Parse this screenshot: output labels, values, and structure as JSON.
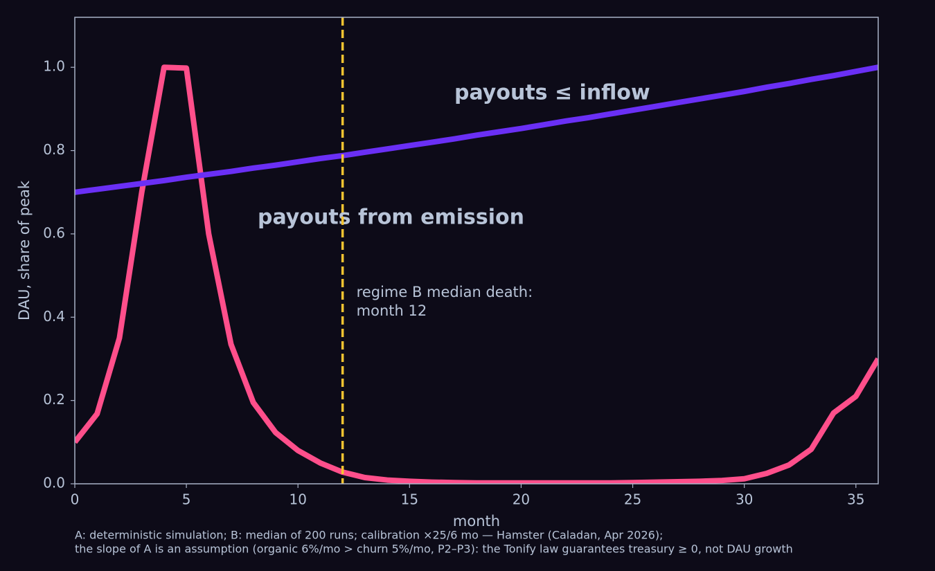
{
  "chart_data": {
    "type": "line",
    "xlabel": "month",
    "ylabel": "DAU, share of peak",
    "x": [
      0,
      1,
      2,
      3,
      4,
      5,
      6,
      7,
      8,
      9,
      10,
      11,
      12,
      13,
      14,
      15,
      16,
      17,
      18,
      19,
      20,
      21,
      22,
      23,
      24,
      25,
      26,
      27,
      28,
      29,
      30,
      31,
      32,
      33,
      34,
      35,
      36
    ],
    "series": [
      {
        "color": "#ff4f8b",
        "values": [
          0.1,
          0.168,
          0.35,
          0.7,
          1.0,
          0.998,
          0.6,
          0.335,
          0.195,
          0.123,
          0.08,
          0.05,
          0.028,
          0.015,
          0.009,
          0.006,
          0.004,
          0.003,
          0.002,
          0.002,
          0.002,
          0.002,
          0.002,
          0.002,
          0.002,
          0.003,
          0.004,
          0.005,
          0.006,
          0.008,
          0.012,
          0.025,
          0.045,
          0.083,
          0.17,
          0.21,
          0.3
        ]
      },
      {
        "color": "#6a2ff5",
        "values": [
          0.7,
          0.707,
          0.714,
          0.721,
          0.728,
          0.736,
          0.743,
          0.75,
          0.758,
          0.765,
          0.773,
          0.781,
          0.788,
          0.796,
          0.804,
          0.812,
          0.82,
          0.828,
          0.837,
          0.845,
          0.853,
          0.862,
          0.871,
          0.879,
          0.888,
          0.897,
          0.906,
          0.915,
          0.924,
          0.933,
          0.942,
          0.952,
          0.961,
          0.971,
          0.98,
          0.99,
          1.0
        ]
      }
    ],
    "vline": {
      "x": 12,
      "color": "#f5c431",
      "label": [
        "regime B median death:",
        "month 12"
      ]
    },
    "annotations": [
      "payouts ≤ inflow",
      "payouts from emission"
    ],
    "footnote": [
      "A: deterministic simulation; B: median of 200 runs; calibration ×25/6 mo — Hamster (Caladan, Apr 2026);",
      "the slope of A is an assumption (organic 6%/mo > churn 5%/mo, P2–P3): the Tonify law guarantees treasury ≥ 0, not DAU growth"
    ],
    "xlim": [
      0,
      36
    ],
    "xticks": [
      0,
      5,
      10,
      15,
      20,
      25,
      30,
      35
    ],
    "ylim": [
      0,
      1.12
    ],
    "yticks": [
      {
        "value": 0,
        "label": "0.0"
      },
      0.2,
      0.4,
      0.6,
      0.8,
      {
        "value": 1,
        "label": "1.0"
      }
    ],
    "grid": false
  }
}
